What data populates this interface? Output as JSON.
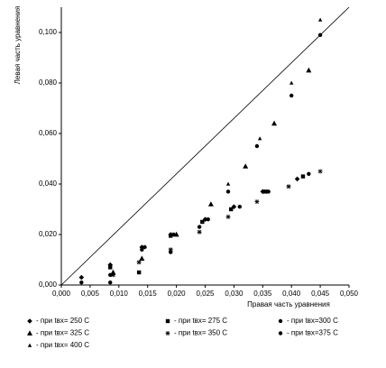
{
  "chart_data": {
    "type": "scatter",
    "x_label": "Правая часть уравнения",
    "y_label": "Левая часть уравнения",
    "xlim": [
      0,
      0.05
    ],
    "ylim": [
      0,
      0.11
    ],
    "xticks": [
      {
        "value": 0,
        "label": "0,000"
      },
      {
        "value": 0.005,
        "label": "0,005"
      },
      {
        "value": 0.01,
        "label": "0,010"
      },
      {
        "value": 0.015,
        "label": "0,015"
      },
      {
        "value": 0.02,
        "label": "0,020"
      },
      {
        "value": 0.025,
        "label": "0,025"
      },
      {
        "value": 0.03,
        "label": "0,030"
      },
      {
        "value": 0.035,
        "label": "0,035"
      },
      {
        "value": 0.04,
        "label": "0,040"
      },
      {
        "value": 0.045,
        "label": "0,045"
      },
      {
        "value": 0.05,
        "label": "0,050"
      }
    ],
    "yticks": [
      {
        "value": 0,
        "label": "0,000"
      },
      {
        "value": 0.02,
        "label": "0,020"
      },
      {
        "value": 0.04,
        "label": "0,040"
      },
      {
        "value": 0.06,
        "label": "0,060"
      },
      {
        "value": 0.08,
        "label": "0,080"
      },
      {
        "value": 0.1,
        "label": "0,100"
      }
    ],
    "series": [
      {
        "name": "- при tвх= 250 С",
        "marker": "diamond",
        "color": "#000000",
        "x": [
          0.0035,
          0.0085,
          0.014,
          0.019,
          0.025,
          0.03,
          0.035,
          0.041
        ],
        "values": [
          0.003,
          0.008,
          0.015,
          0.02,
          0.026,
          0.031,
          0.037,
          0.042
        ]
      },
      {
        "name": "- при tвх= 275 С",
        "marker": "square",
        "color": "#000000",
        "x": [
          0.0085,
          0.0135,
          0.019,
          0.0245,
          0.0295,
          0.0355,
          0.042
        ],
        "values": [
          0.007,
          0.005,
          0.0195,
          0.025,
          0.03,
          0.037,
          0.043
        ]
      },
      {
        "name": "- при tвх=300 С",
        "marker": "circle",
        "color": "#000000",
        "x": [
          0.0085,
          0.014,
          0.019,
          0.0255,
          0.031,
          0.036,
          0.043
        ],
        "values": [
          0.004,
          0.014,
          0.013,
          0.026,
          0.031,
          0.037,
          0.044
        ]
      },
      {
        "name": "- при tвх= 325 С",
        "marker": "triangle",
        "color": "#000000",
        "x": [
          0.009,
          0.014,
          0.02,
          0.026,
          0.032,
          0.037,
          0.043
        ],
        "values": [
          0.005,
          0.0105,
          0.02,
          0.032,
          0.047,
          0.064,
          0.085
        ]
      },
      {
        "name": "- при tвх= 350 С",
        "marker": "asterisk",
        "color": "#000000",
        "x": [
          0.009,
          0.0135,
          0.019,
          0.024,
          0.029,
          0.034,
          0.0395,
          0.045
        ],
        "values": [
          0.004,
          0.009,
          0.014,
          0.021,
          0.027,
          0.033,
          0.039,
          0.045
        ]
      },
      {
        "name": "- при tвх=375 С",
        "marker": "circle",
        "color": "#000000",
        "x": [
          0.0035,
          0.0085,
          0.0145,
          0.0195,
          0.024,
          0.029,
          0.034,
          0.04,
          0.045
        ],
        "values": [
          0.001,
          0.001,
          0.015,
          0.02,
          0.023,
          0.037,
          0.055,
          0.075,
          0.099
        ]
      },
      {
        "name": "- при tвх= 400 С",
        "marker": "small-triangle",
        "color": "#000000",
        "x": [
          0.029,
          0.0345,
          0.04,
          0.045
        ],
        "values": [
          0.04,
          0.058,
          0.08,
          0.105
        ]
      }
    ]
  }
}
